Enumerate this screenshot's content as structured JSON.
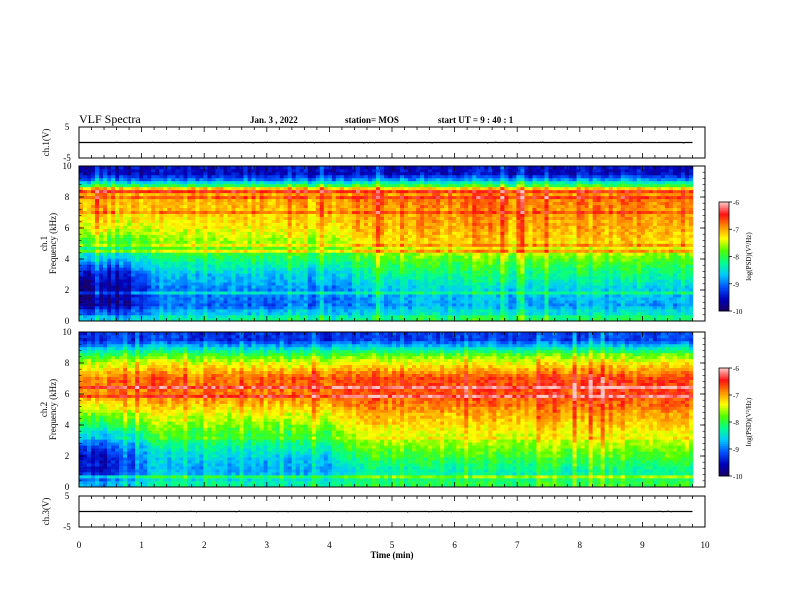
{
  "header": {
    "title": "VLF Spectra",
    "date": "Jan. 3 , 2022",
    "station": "station= MOS",
    "start_ut": "start UT = 9 : 40 : 1"
  },
  "colors": {
    "background": "#ffffff",
    "axis": "#000000",
    "colormap": [
      "#1a0060",
      "#0000b8",
      "#0050ff",
      "#00c8ff",
      "#00ff90",
      "#50ff00",
      "#ffff00",
      "#ff9000",
      "#ff1010",
      "#ffc8c8"
    ]
  },
  "chart_data": [
    {
      "type": "line",
      "panel": "ch1_voltage",
      "ylabel": "ch.1(V)",
      "ylim": [
        -5,
        5
      ],
      "yticks": [
        -5,
        5
      ],
      "xlim": [
        0,
        10
      ],
      "series": [
        {
          "x": [
            0,
            9.8
          ],
          "y": [
            0,
            0
          ]
        }
      ]
    },
    {
      "type": "heatmap",
      "panel": "ch1_spectrogram",
      "ylabel": "ch.1 Frequency (kHz)",
      "xlim": [
        0,
        10
      ],
      "ylim": [
        0,
        10
      ],
      "yticks": [
        0,
        2,
        4,
        6,
        8,
        10
      ],
      "colorbar": {
        "label": "log(PSD)(V²/Hz)",
        "range": [
          -10,
          -6
        ],
        "ticks": [
          -10,
          -9,
          -8,
          -7,
          -6
        ]
      },
      "x_times_min": [
        0,
        0.5,
        1.25,
        2,
        3,
        4,
        4.55,
        5,
        6,
        7,
        8,
        9,
        9.8
      ],
      "freq_kHz": [
        0.25,
        1,
        2,
        3,
        4,
        5,
        6,
        7,
        8,
        8.5,
        9,
        9.5
      ],
      "log_psd": [
        [
          -8.6,
          -8.8,
          -8.4,
          -8.3,
          -8.2,
          -8.3,
          -8.2,
          -8.1,
          -8.1,
          -8.1,
          -8.1,
          -8.1,
          -8.1
        ],
        [
          -9.8,
          -9.9,
          -9.0,
          -9.0,
          -9.1,
          -9.0,
          -8.9,
          -8.8,
          -8.8,
          -8.8,
          -8.8,
          -8.8,
          -8.8
        ],
        [
          -9.8,
          -9.9,
          -9.0,
          -8.9,
          -8.9,
          -9.0,
          -8.7,
          -8.6,
          -8.6,
          -8.6,
          -8.6,
          -8.6,
          -8.6
        ],
        [
          -9.5,
          -9.7,
          -8.7,
          -8.6,
          -8.6,
          -8.7,
          -8.3,
          -8.2,
          -8.2,
          -8.2,
          -8.2,
          -8.2,
          -8.2
        ],
        [
          -8.6,
          -8.9,
          -8.2,
          -8.1,
          -8.1,
          -8.2,
          -7.9,
          -7.8,
          -7.8,
          -7.8,
          -7.8,
          -7.8,
          -7.8
        ],
        [
          -7.9,
          -8.1,
          -7.7,
          -7.6,
          -7.6,
          -7.7,
          -7.3,
          -7.2,
          -7.2,
          -7.2,
          -7.2,
          -7.2,
          -7.2
        ],
        [
          -7.4,
          -7.5,
          -7.4,
          -7.3,
          -7.3,
          -7.3,
          -7.0,
          -7.0,
          -7.0,
          -7.0,
          -7.0,
          -7.0,
          -7.0
        ],
        [
          -7.1,
          -7.2,
          -7.1,
          -7.1,
          -7.1,
          -7.1,
          -6.9,
          -6.9,
          -6.9,
          -6.9,
          -6.9,
          -6.9,
          -6.9
        ],
        [
          -7.0,
          -7.1,
          -7.0,
          -7.0,
          -7.0,
          -7.0,
          -6.8,
          -6.8,
          -6.8,
          -6.8,
          -6.8,
          -6.8,
          -6.8
        ],
        [
          -6.9,
          -7.0,
          -6.9,
          -6.9,
          -6.9,
          -6.9,
          -6.9,
          -7.0,
          -7.0,
          -7.0,
          -7.0,
          -7.0,
          -7.0
        ],
        [
          -8.8,
          -8.9,
          -8.8,
          -8.8,
          -8.8,
          -8.8,
          -8.6,
          -8.6,
          -8.6,
          -8.6,
          -8.6,
          -8.6,
          -8.6
        ],
        [
          -9.6,
          -9.6,
          -9.5,
          -9.5,
          -9.5,
          -9.5,
          -9.5,
          -9.5,
          -9.5,
          -9.5,
          -9.5,
          -9.5,
          -9.5
        ]
      ]
    },
    {
      "type": "heatmap",
      "panel": "ch2_spectrogram",
      "ylabel": "ch.2 Frequency (kHz)",
      "xlim": [
        0,
        10
      ],
      "ylim": [
        0,
        10
      ],
      "yticks": [
        0,
        2,
        4,
        6,
        8,
        10
      ],
      "colorbar": {
        "label": "log(PSD)(V²/Hz)",
        "range": [
          -10,
          -6
        ],
        "ticks": [
          -10,
          -9,
          -8,
          -7,
          -6
        ]
      },
      "x_times_min": [
        0,
        0.5,
        1.25,
        2,
        3,
        4,
        4.55,
        5,
        6,
        7,
        8,
        9,
        9.8
      ],
      "freq_kHz": [
        0.25,
        1,
        2,
        3,
        4,
        5,
        6,
        7,
        8,
        8.5,
        9,
        9.5
      ],
      "log_psd": [
        [
          -8.6,
          -8.8,
          -8.4,
          -8.3,
          -8.3,
          -8.3,
          -8.1,
          -8.0,
          -8.0,
          -8.0,
          -8.0,
          -8.0,
          -8.0
        ],
        [
          -9.3,
          -9.5,
          -8.8,
          -8.8,
          -8.8,
          -8.8,
          -8.4,
          -8.3,
          -8.3,
          -8.3,
          -8.3,
          -8.3,
          -8.3
        ],
        [
          -9.4,
          -9.5,
          -8.7,
          -8.6,
          -8.6,
          -8.6,
          -8.0,
          -7.9,
          -7.9,
          -7.9,
          -7.9,
          -7.9,
          -7.9
        ],
        [
          -8.8,
          -9.0,
          -8.2,
          -8.1,
          -8.1,
          -8.1,
          -7.6,
          -7.5,
          -7.5,
          -7.5,
          -7.5,
          -7.5,
          -7.5
        ],
        [
          -8.0,
          -8.2,
          -7.7,
          -7.7,
          -7.7,
          -7.7,
          -7.2,
          -7.2,
          -7.2,
          -7.2,
          -7.2,
          -7.2,
          -7.2
        ],
        [
          -7.4,
          -7.5,
          -7.3,
          -7.3,
          -7.2,
          -7.2,
          -6.9,
          -6.9,
          -6.9,
          -6.9,
          -6.9,
          -6.9,
          -6.9
        ],
        [
          -6.9,
          -6.9,
          -6.9,
          -6.8,
          -6.8,
          -6.8,
          -6.6,
          -6.6,
          -6.6,
          -6.6,
          -6.6,
          -6.6,
          -6.6
        ],
        [
          -6.8,
          -6.8,
          -6.8,
          -6.8,
          -6.7,
          -6.7,
          -6.6,
          -6.6,
          -6.6,
          -6.6,
          -6.6,
          -6.6,
          -6.6
        ],
        [
          -7.4,
          -7.5,
          -7.4,
          -7.4,
          -7.4,
          -7.4,
          -7.3,
          -7.3,
          -7.3,
          -7.3,
          -7.3,
          -7.3,
          -7.3
        ],
        [
          -7.9,
          -8.0,
          -7.9,
          -7.9,
          -7.9,
          -7.9,
          -7.7,
          -7.7,
          -7.7,
          -7.7,
          -7.7,
          -7.7,
          -7.7
        ],
        [
          -8.6,
          -8.7,
          -8.6,
          -8.6,
          -8.6,
          -8.6,
          -8.5,
          -8.5,
          -8.5,
          -8.5,
          -8.5,
          -8.5,
          -8.5
        ],
        [
          -9.3,
          -9.3,
          -9.3,
          -9.3,
          -9.3,
          -9.3,
          -9.2,
          -9.2,
          -9.2,
          -9.2,
          -9.2,
          -9.2,
          -9.2
        ]
      ]
    },
    {
      "type": "line",
      "panel": "ch3_voltage",
      "ylabel": "ch.3(V)",
      "xlabel": "Time (min)",
      "ylim": [
        -5,
        5
      ],
      "yticks": [
        -5,
        5
      ],
      "xlim": [
        0,
        10
      ],
      "xticks": [
        0,
        1,
        2,
        3,
        4,
        5,
        6,
        7,
        8,
        9,
        10
      ],
      "series": [
        {
          "x": [
            0,
            9.8
          ],
          "y": [
            0,
            0
          ]
        }
      ]
    }
  ]
}
